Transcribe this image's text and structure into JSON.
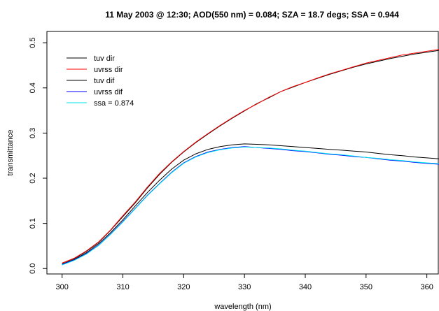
{
  "chart_data": {
    "type": "line",
    "title": "11 May 2003 @ 12:30; AOD(550 nm) = 0.084; SZA = 18.7 degs; SSA = 0.944",
    "xlabel": "wavelength (nm)",
    "ylabel": "transmittance",
    "xlim": [
      297.5,
      362
    ],
    "ylim": [
      -0.012,
      0.525
    ],
    "x_ticks": [
      300,
      310,
      320,
      330,
      340,
      350,
      360
    ],
    "y_ticks": [
      0.0,
      0.1,
      0.2,
      0.3,
      0.4,
      0.5
    ],
    "x_tick_labels": [
      "300",
      "310",
      "320",
      "330",
      "340",
      "350",
      "360"
    ],
    "y_tick_labels": [
      "0.0",
      "0.1",
      "0.2",
      "0.3",
      "0.4",
      "0.5"
    ],
    "legend_position": "top-left",
    "x": [
      300,
      302,
      304,
      306,
      308,
      310,
      312,
      314,
      316,
      318,
      320,
      322,
      324,
      326,
      328,
      330,
      332,
      334,
      336,
      338,
      340,
      342,
      344,
      346,
      348,
      350,
      352,
      354,
      356,
      358,
      360,
      362
    ],
    "series": [
      {
        "name": "tuv dir",
        "color": "#000000",
        "values": [
          0.012,
          0.022,
          0.038,
          0.058,
          0.085,
          0.115,
          0.145,
          0.178,
          0.208,
          0.235,
          0.258,
          0.279,
          0.298,
          0.316,
          0.333,
          0.349,
          0.365,
          0.378,
          0.392,
          0.402,
          0.412,
          0.421,
          0.43,
          0.438,
          0.446,
          0.453,
          0.459,
          0.465,
          0.47,
          0.475,
          0.479,
          0.483
        ]
      },
      {
        "name": "uvrss  dir",
        "color": "#ff0000",
        "values": [
          0.012,
          0.023,
          0.039,
          0.059,
          0.086,
          0.117,
          0.147,
          0.18,
          0.21,
          0.236,
          0.259,
          0.28,
          0.299,
          0.317,
          0.334,
          0.35,
          0.364,
          0.379,
          0.392,
          0.403,
          0.412,
          0.422,
          0.431,
          0.439,
          0.447,
          0.455,
          0.461,
          0.467,
          0.473,
          0.477,
          0.481,
          0.485
        ]
      },
      {
        "name": "tuv dif",
        "color": "#000000",
        "values": [
          0.01,
          0.02,
          0.035,
          0.055,
          0.08,
          0.108,
          0.138,
          0.168,
          0.195,
          0.22,
          0.24,
          0.254,
          0.264,
          0.27,
          0.274,
          0.276,
          0.275,
          0.274,
          0.272,
          0.27,
          0.268,
          0.266,
          0.264,
          0.262,
          0.26,
          0.258,
          0.255,
          0.252,
          0.25,
          0.247,
          0.245,
          0.243
        ]
      },
      {
        "name": "uvrss dif",
        "color": "#0000ff",
        "values": [
          0.009,
          0.019,
          0.033,
          0.052,
          0.077,
          0.104,
          0.133,
          0.162,
          0.188,
          0.213,
          0.234,
          0.248,
          0.258,
          0.264,
          0.268,
          0.27,
          0.268,
          0.266,
          0.264,
          0.261,
          0.259,
          0.256,
          0.253,
          0.251,
          0.248,
          0.246,
          0.243,
          0.24,
          0.238,
          0.235,
          0.233,
          0.231
        ]
      },
      {
        "name": "ssa = 0.874",
        "color": "#00e5ee",
        "values": [
          0.008,
          0.018,
          0.032,
          0.051,
          0.076,
          0.103,
          0.132,
          0.161,
          0.187,
          0.212,
          0.233,
          0.247,
          0.257,
          0.263,
          0.267,
          0.269,
          0.268,
          0.267,
          0.265,
          0.262,
          0.26,
          0.257,
          0.254,
          0.252,
          0.249,
          0.246,
          0.244,
          0.241,
          0.239,
          0.236,
          0.234,
          0.232
        ]
      }
    ]
  }
}
